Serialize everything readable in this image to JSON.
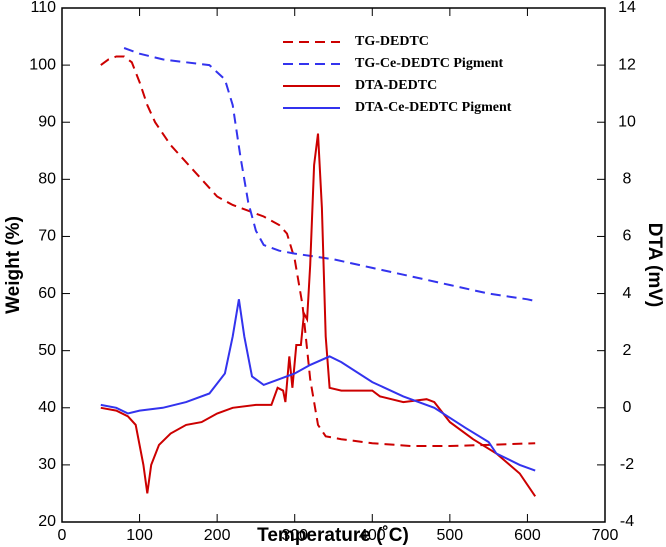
{
  "chart_data": {
    "type": "line",
    "xlabel": "Temperature (˚C)",
    "ylabel": "Weight (%)",
    "y2label": "DTA (mV)",
    "xlim": [
      0,
      700
    ],
    "xticks": [
      0,
      100,
      200,
      300,
      400,
      500,
      600,
      700
    ],
    "ylim": [
      20,
      110
    ],
    "yticks": [
      20,
      30,
      40,
      50,
      60,
      70,
      80,
      90,
      100,
      110
    ],
    "y2lim": [
      -4,
      14
    ],
    "y2ticks": [
      -4,
      -2,
      0,
      2,
      4,
      6,
      8,
      10,
      12,
      14
    ],
    "series": [
      {
        "name": "TG-DEDTC",
        "color": "#cc0000",
        "dash": true,
        "x": [
          50,
          60,
          70,
          80,
          90,
          100,
          110,
          120,
          140,
          160,
          180,
          200,
          220,
          240,
          260,
          280,
          290,
          300,
          310,
          320,
          330,
          340,
          360,
          400,
          450,
          500,
          550,
          610
        ],
        "values": [
          100,
          101,
          101.5,
          101.5,
          100.5,
          97,
          93,
          90,
          86,
          83,
          80,
          77,
          75.5,
          74.5,
          73.5,
          72,
          70.5,
          66,
          58,
          45,
          37,
          35,
          34.5,
          33.8,
          33.3,
          33.3,
          33.5,
          33.8
        ]
      },
      {
        "name": "TG-Ce-DEDTC Pigment",
        "color": "#3333ee",
        "dash": true,
        "x": [
          80,
          100,
          130,
          160,
          190,
          210,
          220,
          230,
          240,
          250,
          260,
          280,
          300,
          350,
          400,
          450,
          500,
          550,
          600,
          610
        ],
        "values": [
          103,
          102,
          101,
          100.5,
          100,
          97.5,
          93,
          84,
          76,
          71,
          68.5,
          67.5,
          67,
          66,
          64.5,
          63,
          61.5,
          60,
          59,
          58.7
        ]
      },
      {
        "name": "DTA-DEDTC",
        "color": "#cc0000",
        "dash": false,
        "axis": "y2",
        "x": [
          50,
          70,
          85,
          95,
          105,
          110,
          115,
          125,
          140,
          160,
          180,
          200,
          220,
          250,
          270,
          278,
          285,
          288,
          293,
          297,
          302,
          308,
          312,
          316,
          320,
          325,
          330,
          335,
          340,
          345,
          360,
          400,
          410,
          440,
          470,
          480,
          500,
          530,
          560,
          590,
          610
        ],
        "values": [
          0,
          -0.1,
          -0.3,
          -0.6,
          -2,
          -3,
          -2,
          -1.3,
          -0.9,
          -0.6,
          -0.5,
          -0.2,
          0,
          0.1,
          0.1,
          0.7,
          0.6,
          0.2,
          1.8,
          0.7,
          2.2,
          2.2,
          3.3,
          3.1,
          5,
          8.5,
          9.6,
          7,
          2.5,
          0.7,
          0.6,
          0.6,
          0.4,
          0.2,
          0.3,
          0.2,
          -0.5,
          -1.1,
          -1.6,
          -2.3,
          -3.1
        ]
      },
      {
        "name": "DTA-Ce-DEDTC Pigment",
        "color": "#3333ee",
        "dash": false,
        "axis": "y2",
        "x": [
          50,
          70,
          85,
          100,
          130,
          160,
          190,
          210,
          220,
          228,
          235,
          245,
          260,
          280,
          300,
          320,
          345,
          360,
          400,
          440,
          480,
          520,
          550,
          560,
          590,
          610
        ],
        "values": [
          0.1,
          0,
          -0.2,
          -0.1,
          0,
          0.2,
          0.5,
          1.2,
          2.5,
          3.8,
          2.5,
          1.1,
          0.8,
          1,
          1.2,
          1.5,
          1.8,
          1.6,
          0.9,
          0.4,
          0,
          -0.7,
          -1.2,
          -1.6,
          -2,
          -2.2
        ]
      }
    ]
  }
}
